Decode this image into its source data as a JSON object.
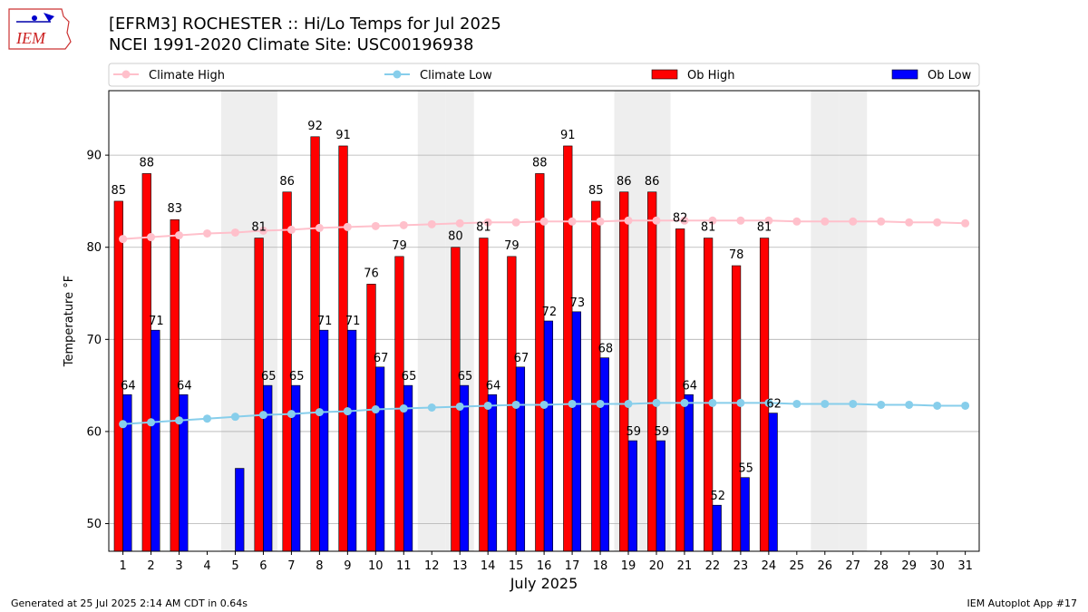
{
  "header": {
    "logo_text": "IEM",
    "title_line1": "[EFRM3] ROCHESTER :: Hi/Lo Temps for Jul 2025",
    "title_line2": "NCEI 1991-2020 Climate Site: USC00196938"
  },
  "footer": {
    "generated": "Generated at 25 Jul 2025 2:14 AM CDT in 0.64s",
    "app": "IEM Autoplot App #17"
  },
  "colors": {
    "climate_high": "#ffc0cb",
    "climate_low": "#87ceeb",
    "ob_high": "#ff0000",
    "ob_low": "#0000ff",
    "weekend_shade": "#eeeeee",
    "grid": "#b0b0b0"
  },
  "chart_data": {
    "type": "bar",
    "xlabel": "July 2025",
    "ylabel": "Temperature °F",
    "ylim": [
      47,
      97
    ],
    "yticks": [
      50,
      60,
      70,
      80,
      90
    ],
    "grid": "horizontal",
    "legend_placement": "top",
    "legend": [
      "Climate High",
      "Climate Low",
      "Ob High",
      "Ob Low"
    ],
    "days": [
      1,
      2,
      3,
      4,
      5,
      6,
      7,
      8,
      9,
      10,
      11,
      12,
      13,
      14,
      15,
      16,
      17,
      18,
      19,
      20,
      21,
      22,
      23,
      24,
      25,
      26,
      27,
      28,
      29,
      30,
      31
    ],
    "weekend_days": [
      5,
      6,
      12,
      13,
      19,
      20,
      26,
      27
    ],
    "ob_high": [
      85,
      88,
      83,
      null,
      null,
      81,
      86,
      92,
      91,
      76,
      79,
      null,
      80,
      81,
      79,
      88,
      91,
      85,
      86,
      86,
      82,
      81,
      78,
      81,
      null,
      null,
      null,
      null,
      null,
      null,
      null
    ],
    "ob_low": [
      64,
      71,
      64,
      null,
      56,
      65,
      65,
      71,
      71,
      67,
      65,
      null,
      65,
      64,
      67,
      72,
      73,
      68,
      59,
      59,
      64,
      52,
      55,
      62,
      null,
      null,
      null,
      null,
      null,
      null,
      null
    ],
    "ob_high_labels": [
      85,
      88,
      83,
      null,
      null,
      81,
      86,
      92,
      91,
      76,
      79,
      null,
      80,
      81,
      79,
      88,
      91,
      85,
      86,
      86,
      82,
      81,
      78,
      81,
      null,
      null,
      null,
      null,
      null,
      null,
      null
    ],
    "ob_low_labels": [
      64,
      71,
      64,
      null,
      null,
      65,
      65,
      71,
      71,
      67,
      65,
      null,
      65,
      64,
      67,
      72,
      73,
      68,
      59,
      59,
      64,
      52,
      55,
      62,
      null,
      null,
      null,
      null,
      null,
      null,
      null
    ],
    "climate_high": [
      80.9,
      81.1,
      81.3,
      81.5,
      81.6,
      81.8,
      81.9,
      82.1,
      82.2,
      82.3,
      82.4,
      82.5,
      82.6,
      82.7,
      82.7,
      82.8,
      82.8,
      82.8,
      82.9,
      82.9,
      82.9,
      82.9,
      82.9,
      82.9,
      82.8,
      82.8,
      82.8,
      82.8,
      82.7,
      82.7,
      82.6
    ],
    "climate_low": [
      60.8,
      61.0,
      61.2,
      61.4,
      61.6,
      61.8,
      61.9,
      62.1,
      62.2,
      62.4,
      62.5,
      62.6,
      62.7,
      62.8,
      62.9,
      62.9,
      63.0,
      63.0,
      63.0,
      63.1,
      63.1,
      63.1,
      63.1,
      63.1,
      63.0,
      63.0,
      63.0,
      62.9,
      62.9,
      62.8,
      62.8
    ]
  }
}
